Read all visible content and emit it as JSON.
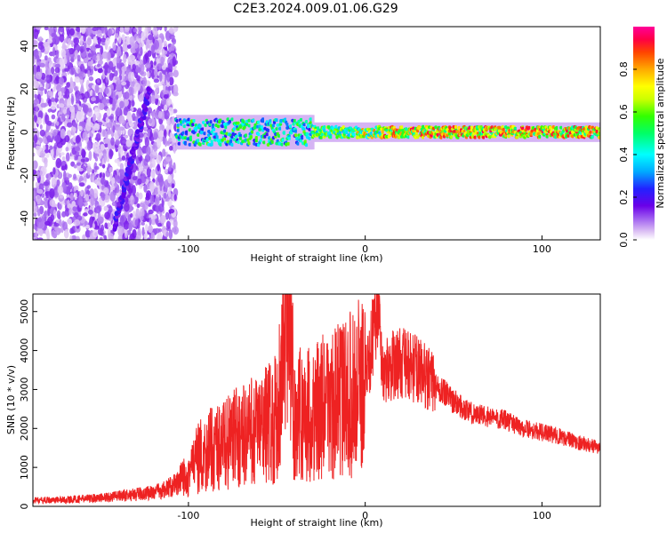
{
  "chart_data": [
    {
      "type": "heatmap",
      "title": "C2E3.2024.009.01.06.G29",
      "xlabel": "Height of straight line (km)",
      "ylabel": "Frequency (Hz)",
      "xlim": [
        -188,
        133
      ],
      "ylim": [
        -50,
        49
      ],
      "x_ticks": [
        -100,
        0,
        100
      ],
      "x_ticklabels": [
        "-100",
        "0",
        "100"
      ],
      "y_ticks": [
        -40,
        -20,
        0,
        20,
        40
      ],
      "y_ticklabels": [
        "-40",
        "-20",
        "0",
        "20",
        "40"
      ],
      "colorbar": {
        "label": "Normalized spectral amplitude",
        "range": [
          0,
          1
        ],
        "ticks": [
          0.0,
          0.2,
          0.4,
          0.6,
          0.8
        ],
        "ticklabels": [
          "0.0",
          "0.2",
          "0.4",
          "0.6",
          "0.8"
        ],
        "colormap": [
          "#ffffff",
          "#dcc0f4",
          "#a060f0",
          "#6a00e8",
          "#2222ff",
          "#00aaff",
          "#00ffff",
          "#00ff66",
          "#33ff00",
          "#ccff00",
          "#ffff00",
          "#ffaa00",
          "#ff4400",
          "#ff0044",
          "#ff0099"
        ]
      },
      "description_of_features": {
        "noise_region_x": [
          -188,
          -107
        ],
        "signal_band_x": [
          -107,
          133
        ],
        "signal_center_hz": 0,
        "diagonal_streak": {
          "x": [
            -142,
            -122
          ],
          "y": [
            -45,
            20
          ]
        }
      }
    },
    {
      "type": "line",
      "xlabel": "Height of straight line (km)",
      "ylabel": "SNR (10 * v/v)",
      "xlim": [
        -188,
        133
      ],
      "ylim": [
        0,
        5450
      ],
      "x_ticks": [
        -100,
        0,
        100
      ],
      "x_ticklabels": [
        "-100",
        "0",
        "100"
      ],
      "y_ticks": [
        0,
        1000,
        2000,
        3000,
        4000,
        5000
      ],
      "y_ticklabels": [
        "0",
        "1000",
        "2000",
        "3000",
        "4000",
        "5000"
      ],
      "color": "#ee2222",
      "series": [
        {
          "x": [
            -188,
            -170,
            -150,
            -130,
            -115,
            -105,
            -100,
            -95,
            -90,
            -80,
            -70,
            -60,
            -50,
            -46,
            -44,
            -40,
            -30,
            -20,
            -10,
            -2,
            2,
            5,
            7,
            10,
            15,
            20,
            25,
            30,
            40,
            50,
            60,
            70,
            80,
            90,
            100,
            110,
            120,
            133
          ],
          "values": [
            150,
            170,
            220,
            300,
            400,
            600,
            900,
            1200,
            1400,
            1600,
            1800,
            2000,
            2300,
            4000,
            5400,
            2300,
            2400,
            2600,
            2800,
            3100,
            3700,
            4600,
            5300,
            3400,
            3600,
            3700,
            3600,
            3500,
            3100,
            2700,
            2400,
            2300,
            2200,
            2000,
            1900,
            1800,
            1650,
            1500
          ]
        }
      ]
    }
  ]
}
